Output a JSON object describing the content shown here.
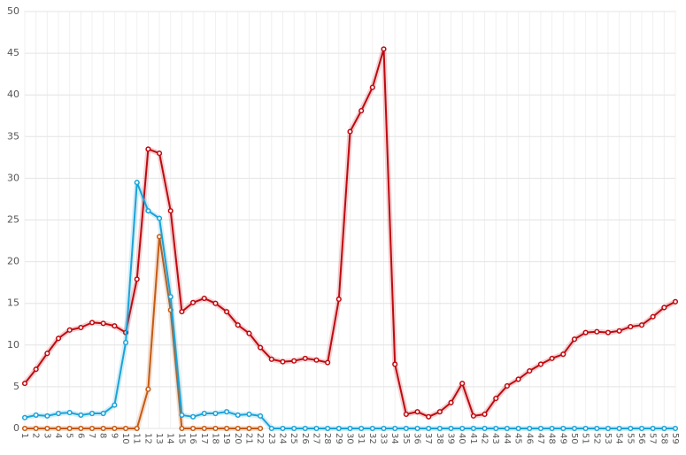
{
  "chart_data": {
    "type": "line",
    "categories": [
      "1",
      "2",
      "3",
      "4",
      "5",
      "6",
      "7",
      "8",
      "9",
      "10",
      "11",
      "12",
      "13",
      "14",
      "15",
      "16",
      "17",
      "18",
      "19",
      "20",
      "21",
      "22",
      "23",
      "24",
      "25",
      "26",
      "27",
      "28",
      "29",
      "30",
      "31",
      "32",
      "33",
      "34",
      "35",
      "36",
      "37",
      "38",
      "39",
      "40",
      "41",
      "42",
      "43",
      "44",
      "45",
      "46",
      "47",
      "48",
      "49",
      "50",
      "51",
      "52",
      "53",
      "54",
      "55",
      "56",
      "57",
      "58",
      "59"
    ],
    "series": [
      {
        "color": "#bf0a10",
        "values": [
          5.4,
          7.1,
          9.0,
          10.8,
          11.8,
          12.1,
          12.7,
          12.6,
          12.3,
          11.5,
          17.9,
          33.5,
          33.0,
          26.1,
          14.0,
          15.1,
          15.6,
          15.0,
          14.0,
          12.4,
          11.4,
          9.7,
          8.3,
          8.0,
          8.1,
          8.4,
          8.2,
          7.9,
          15.5,
          35.6,
          38.1,
          40.9,
          45.5,
          7.7,
          1.7,
          2.0,
          1.4,
          2.0,
          3.1,
          5.4,
          1.5,
          1.7,
          3.6,
          5.1,
          5.9,
          6.9,
          7.7,
          8.4,
          8.9,
          10.7,
          11.5,
          11.6,
          11.5,
          11.7,
          12.2,
          12.4,
          13.4,
          14.5,
          15.2
        ]
      },
      {
        "color": "#c55a11",
        "values": [
          0,
          0,
          0,
          0,
          0,
          0,
          0,
          0,
          0,
          0,
          0,
          4.7,
          23.0,
          14.2,
          0,
          0,
          0,
          0,
          0,
          0,
          0,
          0,
          null,
          null,
          null,
          null,
          null,
          null,
          null,
          null,
          null,
          null,
          null,
          null,
          null,
          null,
          null,
          null,
          null,
          null,
          null,
          null,
          null,
          null,
          null,
          null,
          null,
          null,
          null,
          null,
          null,
          null,
          null,
          null,
          null,
          null,
          null,
          null,
          null
        ]
      },
      {
        "color": "#1aa3d8",
        "values": [
          1.3,
          1.6,
          1.5,
          1.8,
          1.9,
          1.6,
          1.8,
          1.8,
          2.8,
          10.3,
          29.5,
          26.1,
          25.2,
          15.8,
          1.6,
          1.4,
          1.8,
          1.8,
          2.0,
          1.6,
          1.7,
          1.5,
          0,
          0,
          0,
          0,
          0,
          0,
          0,
          0,
          0,
          0,
          0,
          0,
          0,
          0,
          0,
          0,
          0,
          0,
          0,
          0,
          0,
          0,
          0,
          0,
          0,
          0,
          0,
          0,
          0,
          0,
          0,
          0,
          0,
          0,
          0,
          0,
          0
        ]
      }
    ],
    "ylim": [
      0,
      50
    ],
    "yticks": [
      0,
      5,
      10,
      15,
      20,
      25,
      30,
      35,
      40,
      45,
      50
    ],
    "grid": true
  }
}
